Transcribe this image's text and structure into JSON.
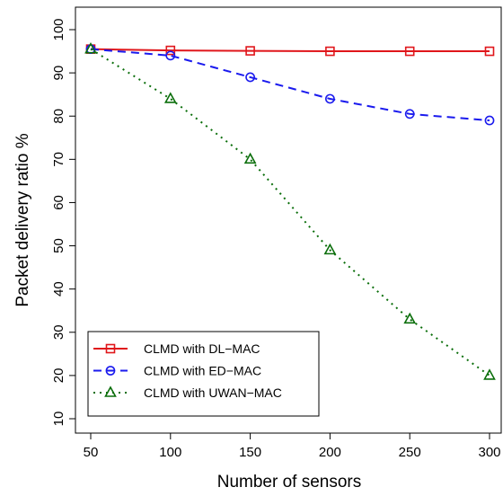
{
  "chart_data": {
    "type": "line",
    "title": "",
    "xlabel": "Number of sensors",
    "ylabel": "Packet delivery ratio %",
    "x": [
      50,
      100,
      150,
      200,
      250,
      300
    ],
    "xlim": [
      50,
      300
    ],
    "ylim": [
      10,
      100
    ],
    "xticks": [
      "50",
      "100",
      "150",
      "200",
      "250",
      "300"
    ],
    "yticks": [
      "10",
      "20",
      "30",
      "40",
      "50",
      "60",
      "70",
      "80",
      "90",
      "100"
    ],
    "grid": false,
    "legend_position": "bottom-left",
    "series": [
      {
        "name": "CLMD with DL−MAC",
        "values": [
          95.5,
          95.2,
          95.1,
          95.0,
          95.0,
          95.0
        ],
        "color": "#e0161b",
        "line_style": "solid",
        "marker": "square"
      },
      {
        "name": "CLMD with ED−MAC",
        "values": [
          95.5,
          94.0,
          89.0,
          84.0,
          80.5,
          79.0
        ],
        "color": "#1a1aee",
        "line_style": "dashed",
        "marker": "circle"
      },
      {
        "name": "CLMD with UWAN−MAC",
        "values": [
          95.5,
          84.0,
          70.0,
          49.0,
          33.0,
          20.0
        ],
        "color": "#0a6e0a",
        "line_style": "dotted",
        "marker": "triangle"
      }
    ]
  }
}
